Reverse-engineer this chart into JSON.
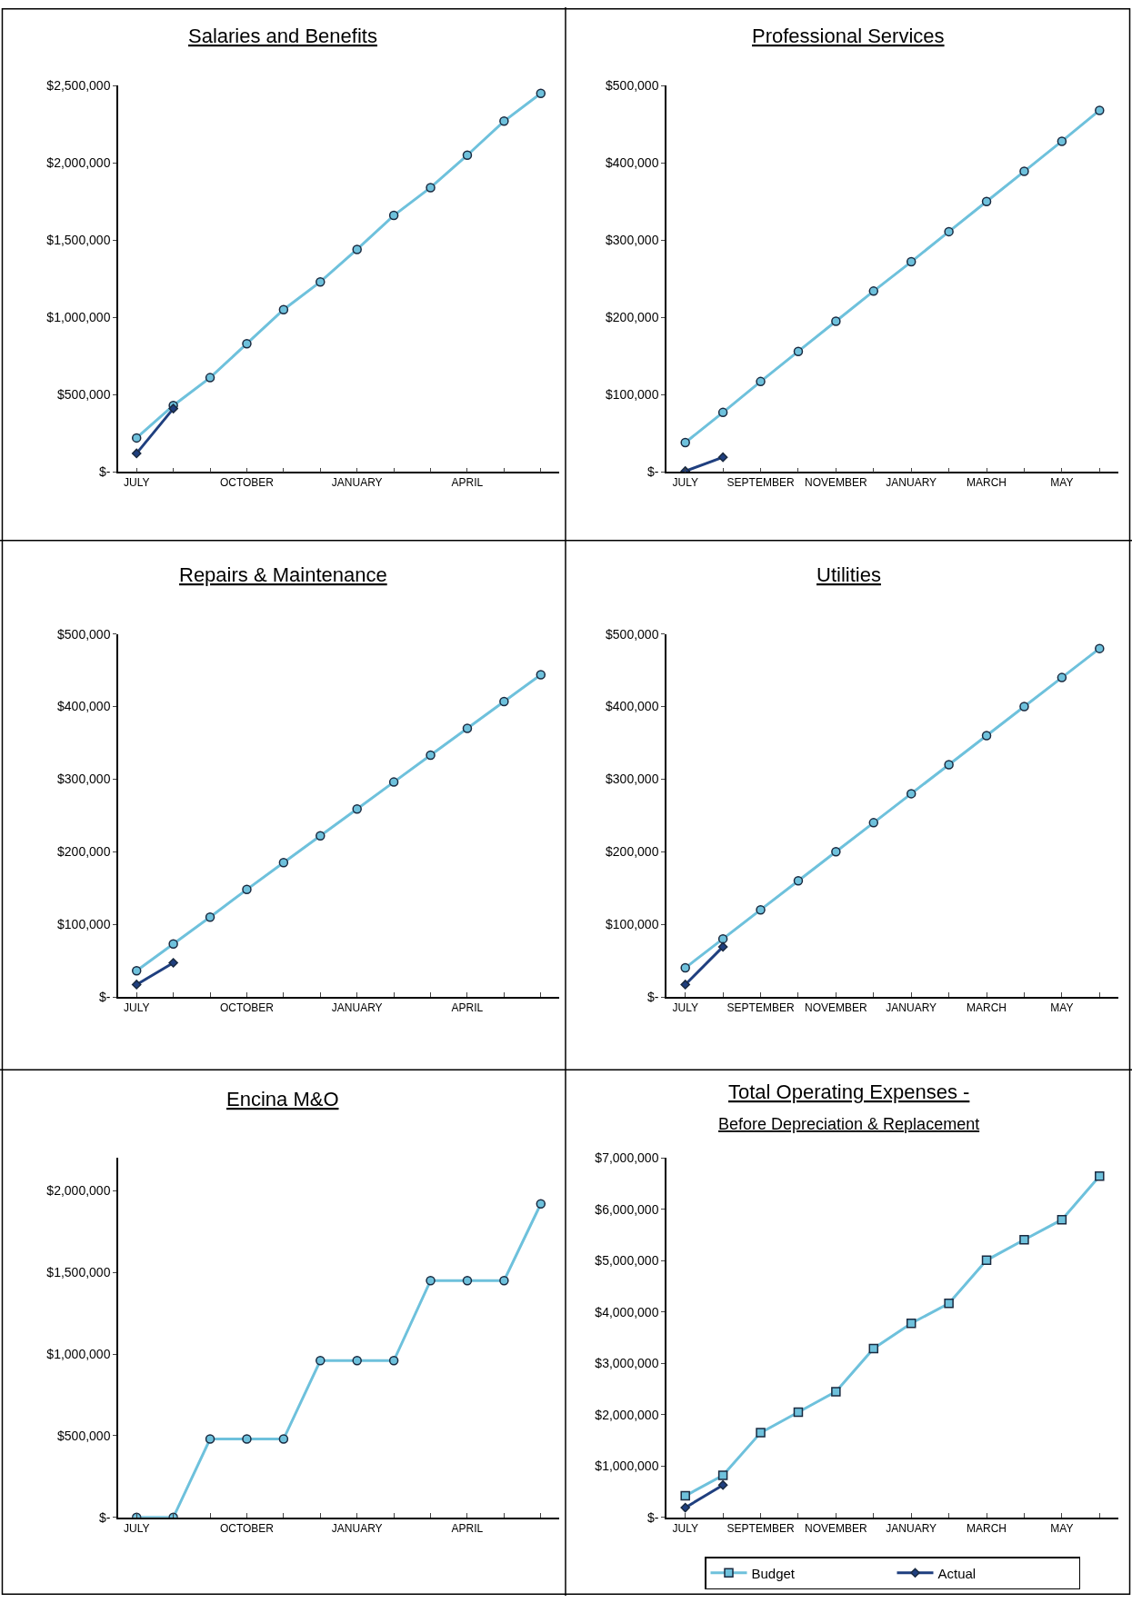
{
  "chart_data": [
    {
      "type": "line",
      "title": "Salaries and Benefits",
      "categories": [
        "JULY",
        null,
        null,
        "OCTOBER",
        null,
        null,
        "JANUARY",
        null,
        null,
        "APRIL",
        null,
        null
      ],
      "ylim": [
        0,
        2500000
      ],
      "yticks": [
        {
          "value": 0,
          "label": "$-"
        },
        {
          "value": 500000,
          "label": "$500,000"
        },
        {
          "value": 1000000,
          "label": "$1,000,000"
        },
        {
          "value": 1500000,
          "label": "$1,500,000"
        },
        {
          "value": 2000000,
          "label": "$2,000,000"
        },
        {
          "value": 2500000,
          "label": "$2,500,000"
        }
      ],
      "series": [
        {
          "color": "#6ec1dc",
          "marker": "circle",
          "values": [
            220000,
            430000,
            610000,
            830000,
            1050000,
            1230000,
            1440000,
            1660000,
            1840000,
            2050000,
            2270000,
            2450000
          ]
        },
        {
          "color": "#1f3f7f",
          "marker": "diamond",
          "values": [
            120000,
            410000,
            null,
            null,
            null,
            null,
            null,
            null,
            null,
            null,
            null,
            null
          ]
        }
      ]
    },
    {
      "type": "line",
      "title": "Professional Services",
      "categories": [
        "JULY",
        null,
        "SEPTEMBER",
        null,
        "NOVEMBER",
        null,
        "JANUARY",
        null,
        "MARCH",
        null,
        "MAY",
        null
      ],
      "ylim": [
        0,
        500000
      ],
      "yticks": [
        {
          "value": 0,
          "label": "$-"
        },
        {
          "value": 100000,
          "label": "$100,000"
        },
        {
          "value": 200000,
          "label": "$200,000"
        },
        {
          "value": 300000,
          "label": "$300,000"
        },
        {
          "value": 400000,
          "label": "$400,000"
        },
        {
          "value": 500000,
          "label": "$500,000"
        }
      ],
      "series": [
        {
          "color": "#6ec1dc",
          "marker": "circle",
          "values": [
            38000,
            77000,
            117000,
            156000,
            195000,
            234000,
            272000,
            311000,
            350000,
            389000,
            428000,
            468000
          ]
        },
        {
          "color": "#1f3f7f",
          "marker": "diamond",
          "values": [
            1000,
            19000,
            null,
            null,
            null,
            null,
            null,
            null,
            null,
            null,
            null,
            null
          ]
        }
      ]
    },
    {
      "type": "line",
      "title": "Repairs & Maintenance",
      "categories": [
        "JULY",
        null,
        null,
        "OCTOBER",
        null,
        null,
        "JANUARY",
        null,
        null,
        "APRIL",
        null,
        null
      ],
      "ylim": [
        0,
        500000
      ],
      "yticks": [
        {
          "value": 0,
          "label": "$-"
        },
        {
          "value": 100000,
          "label": "$100,000"
        },
        {
          "value": 200000,
          "label": "$200,000"
        },
        {
          "value": 300000,
          "label": "$300,000"
        },
        {
          "value": 400000,
          "label": "$400,000"
        },
        {
          "value": 500000,
          "label": "$500,000"
        }
      ],
      "series": [
        {
          "color": "#6ec1dc",
          "marker": "circle",
          "values": [
            36000,
            73000,
            110000,
            148000,
            185000,
            222000,
            259000,
            296000,
            333000,
            370000,
            407000,
            444000
          ]
        },
        {
          "color": "#1f3f7f",
          "marker": "diamond",
          "values": [
            17000,
            47000,
            null,
            null,
            null,
            null,
            null,
            null,
            null,
            null,
            null,
            null
          ]
        }
      ]
    },
    {
      "type": "line",
      "title": "Utilities",
      "categories": [
        "JULY",
        null,
        "SEPTEMBER",
        null,
        "NOVEMBER",
        null,
        "JANUARY",
        null,
        "MARCH",
        null,
        "MAY",
        null
      ],
      "ylim": [
        0,
        500000
      ],
      "yticks": [
        {
          "value": 0,
          "label": "$-"
        },
        {
          "value": 100000,
          "label": "$100,000"
        },
        {
          "value": 200000,
          "label": "$200,000"
        },
        {
          "value": 300000,
          "label": "$300,000"
        },
        {
          "value": 400000,
          "label": "$400,000"
        },
        {
          "value": 500000,
          "label": "$500,000"
        }
      ],
      "series": [
        {
          "color": "#6ec1dc",
          "marker": "circle",
          "values": [
            40000,
            80000,
            120000,
            160000,
            200000,
            240000,
            280000,
            320000,
            360000,
            400000,
            440000,
            480000
          ]
        },
        {
          "color": "#1f3f7f",
          "marker": "diamond",
          "values": [
            17000,
            69000,
            null,
            null,
            null,
            null,
            null,
            null,
            null,
            null,
            null,
            null
          ]
        }
      ]
    },
    {
      "type": "line",
      "title": "Encina M&O",
      "categories": [
        "JULY",
        null,
        null,
        "OCTOBER",
        null,
        null,
        "JANUARY",
        null,
        null,
        "APRIL",
        null,
        null
      ],
      "ylim": [
        0,
        2200000
      ],
      "yticks": [
        {
          "value": 0,
          "label": "$-"
        },
        {
          "value": 500000,
          "label": "$500,000"
        },
        {
          "value": 1000000,
          "label": "$1,000,000"
        },
        {
          "value": 1500000,
          "label": "$1,500,000"
        },
        {
          "value": 2000000,
          "label": "$2,000,000"
        }
      ],
      "series": [
        {
          "color": "#6ec1dc",
          "marker": "circle",
          "values": [
            0,
            0,
            480000,
            480000,
            480000,
            960000,
            960000,
            960000,
            1450000,
            1450000,
            1450000,
            1920000
          ]
        }
      ]
    },
    {
      "type": "line",
      "title": "Total Operating Expenses -",
      "subtitle": "Before Depreciation & Replacement",
      "categories": [
        "JULY",
        null,
        "SEPTEMBER",
        null,
        "NOVEMBER",
        null,
        "JANUARY",
        null,
        "MARCH",
        null,
        "MAY",
        null
      ],
      "ylim": [
        0,
        7000000
      ],
      "yticks": [
        {
          "value": 0,
          "label": "$-"
        },
        {
          "value": 1000000,
          "label": "$1,000,000"
        },
        {
          "value": 2000000,
          "label": "$2,000,000"
        },
        {
          "value": 3000000,
          "label": "$3,000,000"
        },
        {
          "value": 4000000,
          "label": "$4,000,000"
        },
        {
          "value": 5000000,
          "label": "$5,000,000"
        },
        {
          "value": 6000000,
          "label": "$6,000,000"
        },
        {
          "value": 7000000,
          "label": "$7,000,000"
        }
      ],
      "legend": "bottom",
      "series": [
        {
          "name": "Budget",
          "color": "#6ec1dc",
          "marker": "square",
          "values": [
            420000,
            820000,
            1650000,
            2050000,
            2450000,
            3290000,
            3780000,
            4170000,
            5010000,
            5410000,
            5800000,
            6650000
          ]
        },
        {
          "name": "Actual",
          "color": "#1f3f7f",
          "marker": "diamond",
          "values": [
            190000,
            630000,
            null,
            null,
            null,
            null,
            null,
            null,
            null,
            null,
            null,
            null
          ]
        }
      ]
    }
  ]
}
